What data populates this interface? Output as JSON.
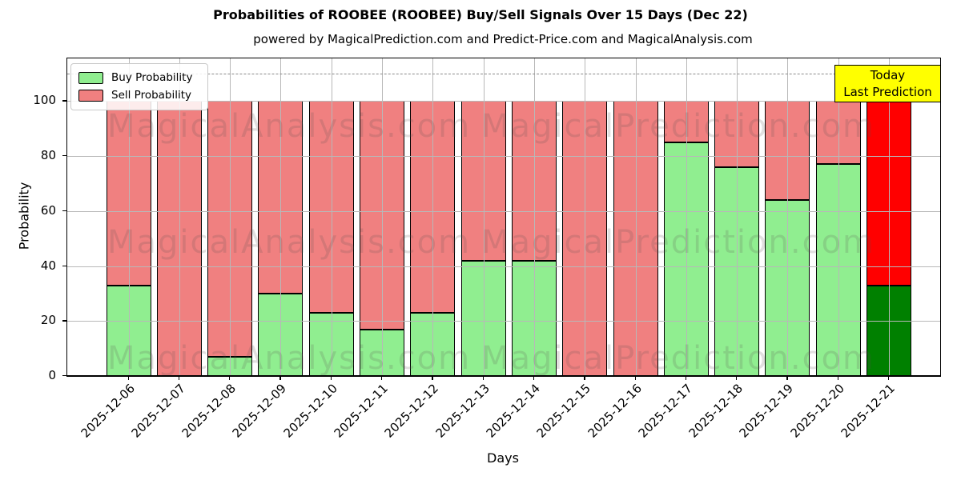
{
  "title": "Probabilities of ROOBEE (ROOBEE) Buy/Sell Signals Over 15 Days (Dec 22)",
  "subtitle": "powered by MagicalPrediction.com and Predict-Price.com and MagicalAnalysis.com",
  "legend": {
    "buy_label": "Buy Probability",
    "sell_label": "Sell Probability"
  },
  "annotation": {
    "line1": "Today",
    "line2": "Last Prediction"
  },
  "watermarks": {
    "left": "MagicalAnalysis.com",
    "right": "MagicalPrediction.com"
  },
  "axes": {
    "xlabel": "Days",
    "ylabel": "Probability",
    "yticks": [
      0,
      20,
      40,
      60,
      80,
      100
    ],
    "ylim": [
      0,
      115.5
    ],
    "dashed_line_y": 110,
    "grid": true
  },
  "colors": {
    "buy": "#90EE90",
    "sell": "#F08080",
    "today_buy": "#008000",
    "today_sell": "#FF0000",
    "annotation_bg": "#FFFF00",
    "grid": "#B8B8B8",
    "dashed": "#8A8A8A"
  },
  "chart_data": {
    "type": "bar",
    "stacked": true,
    "title": "Probabilities of ROOBEE (ROOBEE) Buy/Sell Signals Over 15 Days (Dec 22)",
    "xlabel": "Days",
    "ylabel": "Probability",
    "legend_position": "upper left",
    "categories": [
      "2025-12-06",
      "2025-12-07",
      "2025-12-08",
      "2025-12-09",
      "2025-12-10",
      "2025-12-11",
      "2025-12-12",
      "2025-12-13",
      "2025-12-14",
      "2025-12-15",
      "2025-12-16",
      "2025-12-17",
      "2025-12-18",
      "2025-12-19",
      "2025-12-20",
      "2025-12-21"
    ],
    "series": [
      {
        "name": "Buy Probability",
        "values": [
          33,
          0,
          7,
          30,
          23,
          17,
          23,
          42,
          42,
          0,
          0,
          85,
          76,
          64,
          77,
          33
        ]
      },
      {
        "name": "Sell Probability",
        "values": [
          67,
          100,
          93,
          70,
          77,
          83,
          77,
          58,
          58,
          100,
          100,
          15,
          24,
          36,
          23,
          67
        ]
      }
    ],
    "today_index": 15
  }
}
